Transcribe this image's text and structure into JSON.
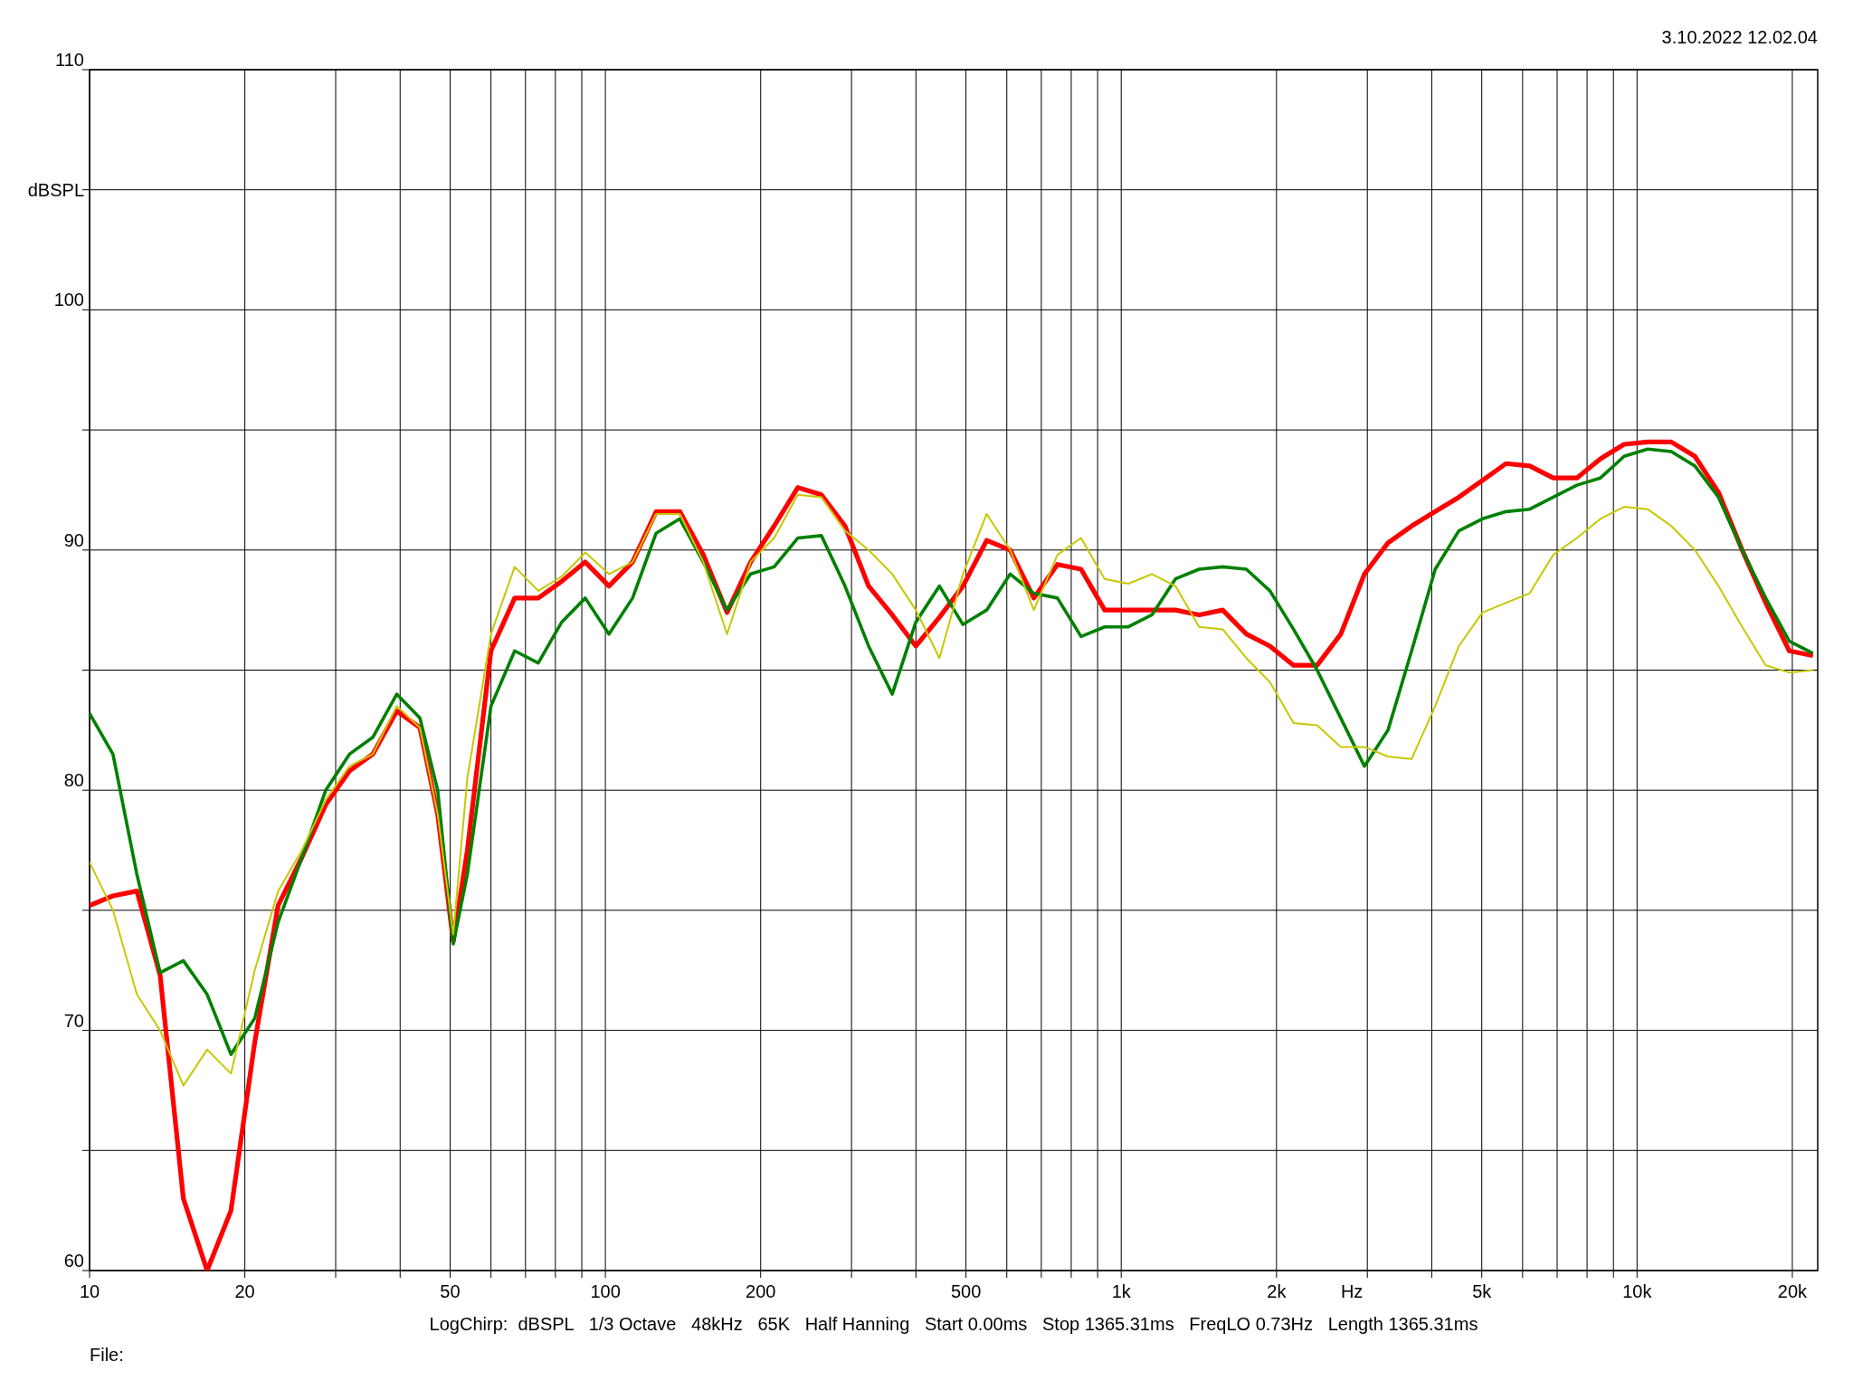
{
  "chart_data": {
    "type": "line",
    "xlabel": "Hz",
    "ylabel": "dBSPL",
    "log": "x",
    "grid": true,
    "marker": "none",
    "line_style": "solid",
    "annotations": [
      "3.10.2022 12.02.04",
      "LogChirp:  dBSPL   1/3 Octave   48kHz   65K   Half Hanning   Start 0.00ms   Stop 1365.31ms   FreqLO 0.73Hz   Length 1365.31ms",
      "File:"
    ],
    "xlim": [
      10,
      22400
    ],
    "ylim": [
      60,
      110
    ],
    "xticks": [
      10,
      20,
      {
        "value": 30,
        "label": null
      },
      {
        "value": 40,
        "label": null
      },
      50,
      {
        "value": 60,
        "label": null
      },
      {
        "value": 70,
        "label": null
      },
      {
        "value": 80,
        "label": null
      },
      {
        "value": 90,
        "label": null
      },
      100,
      200,
      {
        "value": 300,
        "label": null
      },
      {
        "value": 400,
        "label": null
      },
      500,
      {
        "value": 600,
        "label": null
      },
      {
        "value": 700,
        "label": null
      },
      {
        "value": 800,
        "label": null
      },
      {
        "value": 900,
        "label": null
      },
      {
        "value": 1000,
        "label": "1k"
      },
      {
        "value": 2000,
        "label": "2k"
      },
      {
        "value": 3000,
        "label": null
      },
      {
        "value": 4000,
        "label": null
      },
      {
        "value": 5000,
        "label": "5k"
      },
      {
        "value": 6000,
        "label": null
      },
      {
        "value": 7000,
        "label": null
      },
      {
        "value": 8000,
        "label": null
      },
      {
        "value": 9000,
        "label": null
      },
      {
        "value": 10000,
        "label": "10k"
      },
      {
        "value": 20000,
        "label": "20k"
      }
    ],
    "yticks": [
      60,
      {
        "value": 65,
        "label": null
      },
      70,
      {
        "value": 75,
        "label": null
      },
      80,
      {
        "value": 85,
        "label": null
      },
      90,
      {
        "value": 95,
        "label": null
      },
      100,
      {
        "value": 105,
        "label": null
      },
      110
    ],
    "x": [
      10,
      11.1,
      12.35,
      13.7,
      15.2,
      16.9,
      18.8,
      20.9,
      23.2,
      25.8,
      28.7,
      31.9,
      35.4,
      39.4,
      43.7,
      47.3,
      50.7,
      54,
      60,
      66.7,
      74.1,
      82.3,
      91.4,
      101.6,
      112.9,
      125.4,
      139.4,
      154.8,
      172.1,
      191.2,
      212.4,
      236,
      262.3,
      291.4,
      323.8,
      359.8,
      399.8,
      444.2,
      493.5,
      548.4,
      609.3,
      677,
      752.2,
      835.8,
      928.8,
      1032,
      1147,
      1274,
      1416,
      1573,
      1748,
      1942,
      2158,
      2398,
      2665,
      2961,
      3290,
      3656,
      4062,
      4513,
      5015,
      5572,
      6192,
      6880,
      7644,
      8494,
      9437,
      10486,
      11652,
      12946,
      14386,
      15985,
      17760,
      19734,
      21928
    ],
    "series": [
      {
        "color": "#ff0000",
        "values": [
          75.2,
          75.6,
          75.8,
          72.3,
          63.0,
          60.0,
          62.5,
          69.5,
          75.2,
          77.2,
          79.4,
          80.8,
          81.5,
          83.3,
          82.6,
          79.0,
          73.7,
          77.5,
          85.8,
          88.0,
          88.0,
          88.7,
          89.5,
          88.5,
          89.5,
          91.6,
          91.6,
          89.8,
          87.4,
          89.5,
          91.0,
          92.6,
          92.3,
          91.0,
          88.5,
          87.3,
          86.0,
          87.2,
          88.5,
          90.4,
          90.0,
          88.0,
          89.4,
          89.2,
          87.5,
          87.5,
          87.5,
          87.5,
          87.3,
          87.5,
          86.5,
          86.0,
          85.2,
          85.2,
          86.5,
          89.0,
          90.3,
          91.0,
          91.6,
          92.2,
          92.9,
          93.6,
          93.5,
          93.0,
          93.0,
          93.8,
          94.4,
          94.5,
          94.5,
          93.9,
          92.4,
          90.0,
          87.8,
          85.8,
          85.6
        ]
      },
      {
        "color": "#008000",
        "values": [
          83.2,
          81.5,
          76.5,
          72.4,
          72.9,
          71.5,
          69.0,
          70.5,
          74.5,
          77.2,
          80.0,
          81.5,
          82.2,
          84.0,
          83.0,
          80.0,
          73.6,
          76.5,
          83.5,
          85.8,
          85.3,
          87.0,
          88.0,
          86.5,
          88.0,
          90.7,
          91.3,
          89.5,
          87.5,
          89.0,
          89.3,
          90.5,
          90.6,
          88.5,
          86.0,
          84.0,
          87.0,
          88.5,
          86.9,
          87.5,
          89.0,
          88.2,
          88.0,
          86.4,
          86.8,
          86.8,
          87.3,
          88.8,
          89.2,
          89.3,
          89.2,
          88.3,
          86.7,
          85.0,
          83.0,
          81.0,
          82.5,
          85.8,
          89.2,
          90.8,
          91.3,
          91.6,
          91.7,
          92.2,
          92.7,
          93.0,
          93.9,
          94.2,
          94.1,
          93.5,
          92.2,
          90.0,
          88.0,
          86.2,
          85.7
        ]
      },
      {
        "color": "#c8c800",
        "values": [
          77.0,
          75.0,
          71.5,
          70.0,
          67.7,
          69.2,
          68.2,
          72.5,
          75.8,
          77.5,
          79.6,
          81.0,
          81.5,
          83.5,
          82.6,
          79.0,
          74.0,
          80.5,
          86.5,
          89.3,
          88.3,
          88.9,
          89.9,
          89.0,
          89.5,
          91.5,
          91.5,
          89.5,
          86.5,
          89.5,
          90.5,
          92.3,
          92.2,
          90.8,
          90.0,
          89.0,
          87.5,
          85.5,
          89.0,
          91.5,
          90.0,
          87.5,
          89.8,
          90.5,
          88.8,
          88.6,
          89.0,
          88.5,
          86.8,
          86.7,
          85.5,
          84.5,
          82.8,
          82.7,
          81.8,
          81.8,
          81.4,
          81.3,
          83.5,
          86.0,
          87.4,
          87.8,
          88.2,
          89.8,
          90.5,
          91.3,
          91.8,
          91.7,
          91.0,
          90.0,
          88.5,
          86.8,
          85.2,
          84.9,
          85.0
        ]
      }
    ]
  }
}
